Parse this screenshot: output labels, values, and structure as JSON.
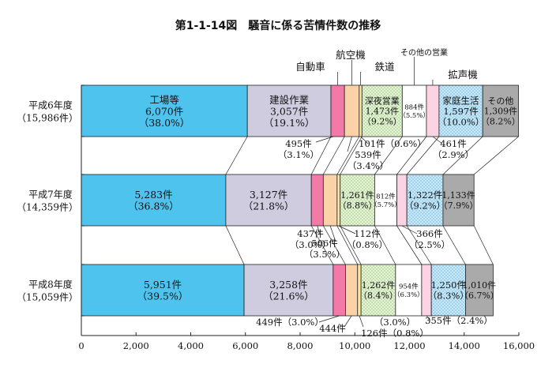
{
  "chart_data": {
    "type": "bar",
    "orientation": "horizontal",
    "stacked": true,
    "title": "第1-1-14図　騒音に係る苦情件数の推移",
    "xlim": [
      0,
      16000
    ],
    "xticks": [
      "0",
      "2,000",
      "4,000",
      "6,000",
      "8,000",
      "10,000",
      "12,000",
      "14,000",
      "16,000"
    ],
    "categories": [
      {
        "label": "平成6年度",
        "total": "（15,986件）"
      },
      {
        "label": "平成7年度",
        "total": "（14,359件）"
      },
      {
        "label": "平成8年度",
        "total": "（15,059件）"
      }
    ],
    "series": [
      {
        "name": "工場等",
        "color": "#4dc3ee",
        "pattern": "solid",
        "values": [
          6070,
          5283,
          5951
        ],
        "labels": [
          [
            "6,070件",
            "（38.0%）"
          ],
          [
            "5,283件",
            "（36.8%）"
          ],
          [
            "5,951件",
            "（39.5%）"
          ]
        ]
      },
      {
        "name": "建設作業",
        "color": "#cfcce0",
        "pattern": "solid",
        "values": [
          3057,
          3127,
          3258
        ],
        "labels": [
          [
            "3,057件",
            "（19.1%）"
          ],
          [
            "3,127件",
            "（21.8%）"
          ],
          [
            "3,258件",
            "（21.6%）"
          ]
        ]
      },
      {
        "name": "自動車",
        "color": "#f37aa8",
        "pattern": "solid",
        "values": [
          495,
          437,
          449
        ],
        "labels": [
          [
            "495件",
            "（3.1%）"
          ],
          [
            "437件",
            "（3.0%）"
          ],
          [
            "449件（3.0%）"
          ]
        ]
      },
      {
        "name": "航空機",
        "color": "#fbd2a8",
        "pattern": "solid",
        "values": [
          539,
          506,
          444
        ],
        "labels": [
          [
            "539件",
            "（3.4%）"
          ],
          [
            "506件",
            "（3.5%）"
          ],
          [
            "444件"
          ]
        ]
      },
      {
        "name": "鉄道",
        "color": "#fbe89a",
        "pattern": "solid",
        "values": [
          101,
          112,
          126
        ],
        "labels": [
          [
            "101件（0.6%）"
          ],
          [
            "112件",
            "（0.8%）"
          ],
          [
            "（3.0%）",
            "126件（0.8%）"
          ]
        ]
      },
      {
        "name": "深夜営業",
        "color": "#e9f5dc",
        "pattern": "dots",
        "values": [
          1473,
          1261,
          1262
        ],
        "labels": [
          [
            "1,473件",
            "（9.2%）"
          ],
          [
            "1,261件",
            "（8.8%）"
          ],
          [
            "1,262件",
            "（8.4%）"
          ]
        ]
      },
      {
        "name": "その他の営業",
        "color": "#ffffff",
        "pattern": "solid",
        "values": [
          884,
          812,
          954
        ],
        "labels": [
          [
            "884件",
            "（5.5%）"
          ],
          [
            "812件",
            "（5.7%）"
          ],
          [
            "954件",
            "（6.3%）"
          ]
        ]
      },
      {
        "name": "拡声機",
        "color": "#fbd3e3",
        "pattern": "solid",
        "values": [
          461,
          366,
          355
        ],
        "labels": [
          [
            "461件",
            "（2.9%）"
          ],
          [
            "366件",
            "（2.5%）"
          ],
          [
            "355件（2.4%）"
          ]
        ]
      },
      {
        "name": "家庭生活",
        "color": "#c8e9f8",
        "pattern": "dots",
        "values": [
          1597,
          1322,
          1250
        ],
        "labels": [
          [
            "1,597件",
            "（10.0%）"
          ],
          [
            "1,322件",
            "（9.2%）"
          ],
          [
            "1,250件",
            "（8.3%）"
          ]
        ]
      },
      {
        "name": "その他",
        "color": "#aaaaaa",
        "pattern": "solid",
        "values": [
          1309,
          1133,
          1010
        ],
        "labels": [
          [
            "1,309件",
            "（8.2%）"
          ],
          [
            "1,133件",
            "（7.9%）"
          ],
          [
            "1,010件",
            "（6.7%）"
          ]
        ]
      }
    ]
  }
}
